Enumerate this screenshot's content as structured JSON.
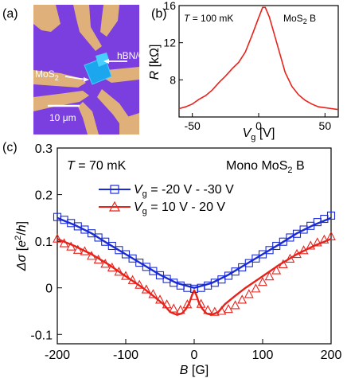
{
  "panel_a": {
    "label": "(a)",
    "annotations": [
      {
        "text": "hBN/Gr"
      },
      {
        "text": "MoS",
        "sub": "2"
      }
    ],
    "scale_bar": {
      "value": "10",
      "unit": "μm"
    },
    "colors": {
      "substrate": "#7b3fe0",
      "contact": "#e0b07a",
      "flake": "#1ba6ee",
      "flake_edge": "#46d0ff"
    }
  },
  "panel_b": {
    "label": "(b)",
    "temperature": {
      "symbol": "T",
      "value": "= 100 mK"
    },
    "sample": {
      "text": "MoS",
      "sub": "2",
      "suffix": " B"
    }
  },
  "panel_c": {
    "label": "(c)",
    "temperature": {
      "symbol": "T",
      "value": "= 70 mK"
    },
    "sample": {
      "text": "Mono MoS",
      "sub": "2",
      "suffix": " B"
    }
  },
  "chart_data": [
    {
      "type": "line",
      "panel": "b",
      "xlabel": "V_g [V]",
      "ylabel": "R [kΩ]",
      "xlim": [
        -60,
        60
      ],
      "ylim": [
        4,
        16
      ],
      "xticks": [
        -50,
        0,
        50
      ],
      "yticks": [
        8,
        12,
        16
      ],
      "color": "#e8221b",
      "series": [
        {
          "x": [
            -60,
            -55,
            -50,
            -45,
            -40,
            -35,
            -30,
            -25,
            -20,
            -15,
            -10,
            -5,
            0,
            3,
            5,
            8,
            10,
            15,
            20,
            25,
            30,
            35,
            40,
            45,
            50,
            55,
            60
          ],
          "y": [
            4.9,
            5.1,
            5.4,
            5.9,
            6.3,
            6.9,
            7.7,
            8.4,
            9.2,
            9.9,
            11.0,
            12.8,
            14.7,
            15.8,
            15.8,
            14.8,
            13.8,
            11.3,
            8.8,
            7.3,
            6.4,
            5.8,
            5.4,
            5.1,
            5.0,
            4.9,
            4.8
          ]
        }
      ]
    },
    {
      "type": "scatter",
      "panel": "c",
      "xlabel": "B [G]",
      "ylabel": "Δσ [e²/h]",
      "xlim": [
        -200,
        200
      ],
      "ylim": [
        -0.12,
        0.3
      ],
      "xticks": [
        -200,
        -100,
        0,
        100,
        200
      ],
      "yticks": [
        -0.1,
        0,
        0.1,
        0.2,
        0.3
      ],
      "legend": "top-center",
      "series": [
        {
          "name_parts": {
            "symbol": "V",
            "sub": "g",
            "values": " = -20 V - -30 V"
          },
          "marker": "square",
          "color": "#1a2bd6",
          "x": [
            -200,
            -190,
            -180,
            -170,
            -160,
            -150,
            -140,
            -130,
            -120,
            -110,
            -100,
            -90,
            -80,
            -70,
            -60,
            -50,
            -40,
            -30,
            -20,
            -10,
            0,
            10,
            20,
            30,
            40,
            50,
            60,
            70,
            80,
            90,
            100,
            110,
            120,
            130,
            140,
            150,
            160,
            170,
            180,
            190,
            200
          ],
          "y": [
            0.152,
            0.146,
            0.139,
            0.132,
            0.125,
            0.117,
            0.108,
            0.099,
            0.09,
            0.081,
            0.072,
            0.063,
            0.054,
            0.045,
            0.036,
            0.027,
            0.019,
            0.011,
            0.005,
            0.0,
            -0.002,
            0.0,
            0.005,
            0.011,
            0.018,
            0.026,
            0.035,
            0.044,
            0.053,
            0.063,
            0.072,
            0.081,
            0.09,
            0.099,
            0.108,
            0.116,
            0.125,
            0.133,
            0.141,
            0.148,
            0.155
          ],
          "fit": {
            "x": [
              -200,
              -175,
              -150,
              -125,
              -100,
              -75,
              -50,
              -25,
              0,
              25,
              50,
              75,
              100,
              125,
              150,
              175,
              200
            ],
            "y": [
              0.15,
              0.135,
              0.117,
              0.094,
              0.072,
              0.05,
              0.028,
              0.01,
              0.0,
              0.01,
              0.028,
              0.05,
              0.072,
              0.094,
              0.117,
              0.135,
              0.15
            ]
          }
        },
        {
          "name_parts": {
            "symbol": "V",
            "sub": "g",
            "values": " =  10 V -  20 V"
          },
          "marker": "triangle",
          "color": "#e8221b",
          "x": [
            -200,
            -190,
            -180,
            -170,
            -160,
            -150,
            -140,
            -130,
            -120,
            -110,
            -100,
            -90,
            -80,
            -70,
            -60,
            -50,
            -40,
            -30,
            -20,
            -10,
            0,
            10,
            20,
            30,
            40,
            50,
            60,
            70,
            80,
            90,
            100,
            110,
            120,
            130,
            140,
            150,
            160,
            170,
            180,
            190,
            200
          ],
          "y": [
            0.105,
            0.095,
            0.088,
            0.081,
            0.078,
            0.068,
            0.06,
            0.051,
            0.043,
            0.034,
            0.025,
            0.016,
            0.006,
            -0.004,
            -0.014,
            -0.026,
            -0.036,
            -0.045,
            -0.048,
            -0.036,
            -0.018,
            -0.035,
            -0.048,
            -0.052,
            -0.05,
            -0.046,
            -0.038,
            -0.026,
            -0.014,
            -0.002,
            0.012,
            0.024,
            0.037,
            0.05,
            0.062,
            0.072,
            0.08,
            0.09,
            0.097,
            0.103,
            0.11
          ],
          "fit": {
            "x": [
              -200,
              -175,
              -150,
              -125,
              -100,
              -75,
              -60,
              -45,
              -35,
              -25,
              -18,
              -12,
              -7,
              -3,
              0,
              3,
              7,
              12,
              18,
              25,
              35,
              45,
              60,
              75,
              100,
              125,
              150,
              175,
              200
            ],
            "y": [
              0.105,
              0.09,
              0.072,
              0.05,
              0.025,
              0.0,
              -0.017,
              -0.035,
              -0.052,
              -0.058,
              -0.055,
              -0.045,
              -0.032,
              -0.015,
              -0.005,
              -0.015,
              -0.032,
              -0.045,
              -0.055,
              -0.058,
              -0.052,
              -0.035,
              -0.017,
              0.0,
              0.025,
              0.05,
              0.072,
              0.09,
              0.105
            ]
          }
        }
      ]
    }
  ]
}
